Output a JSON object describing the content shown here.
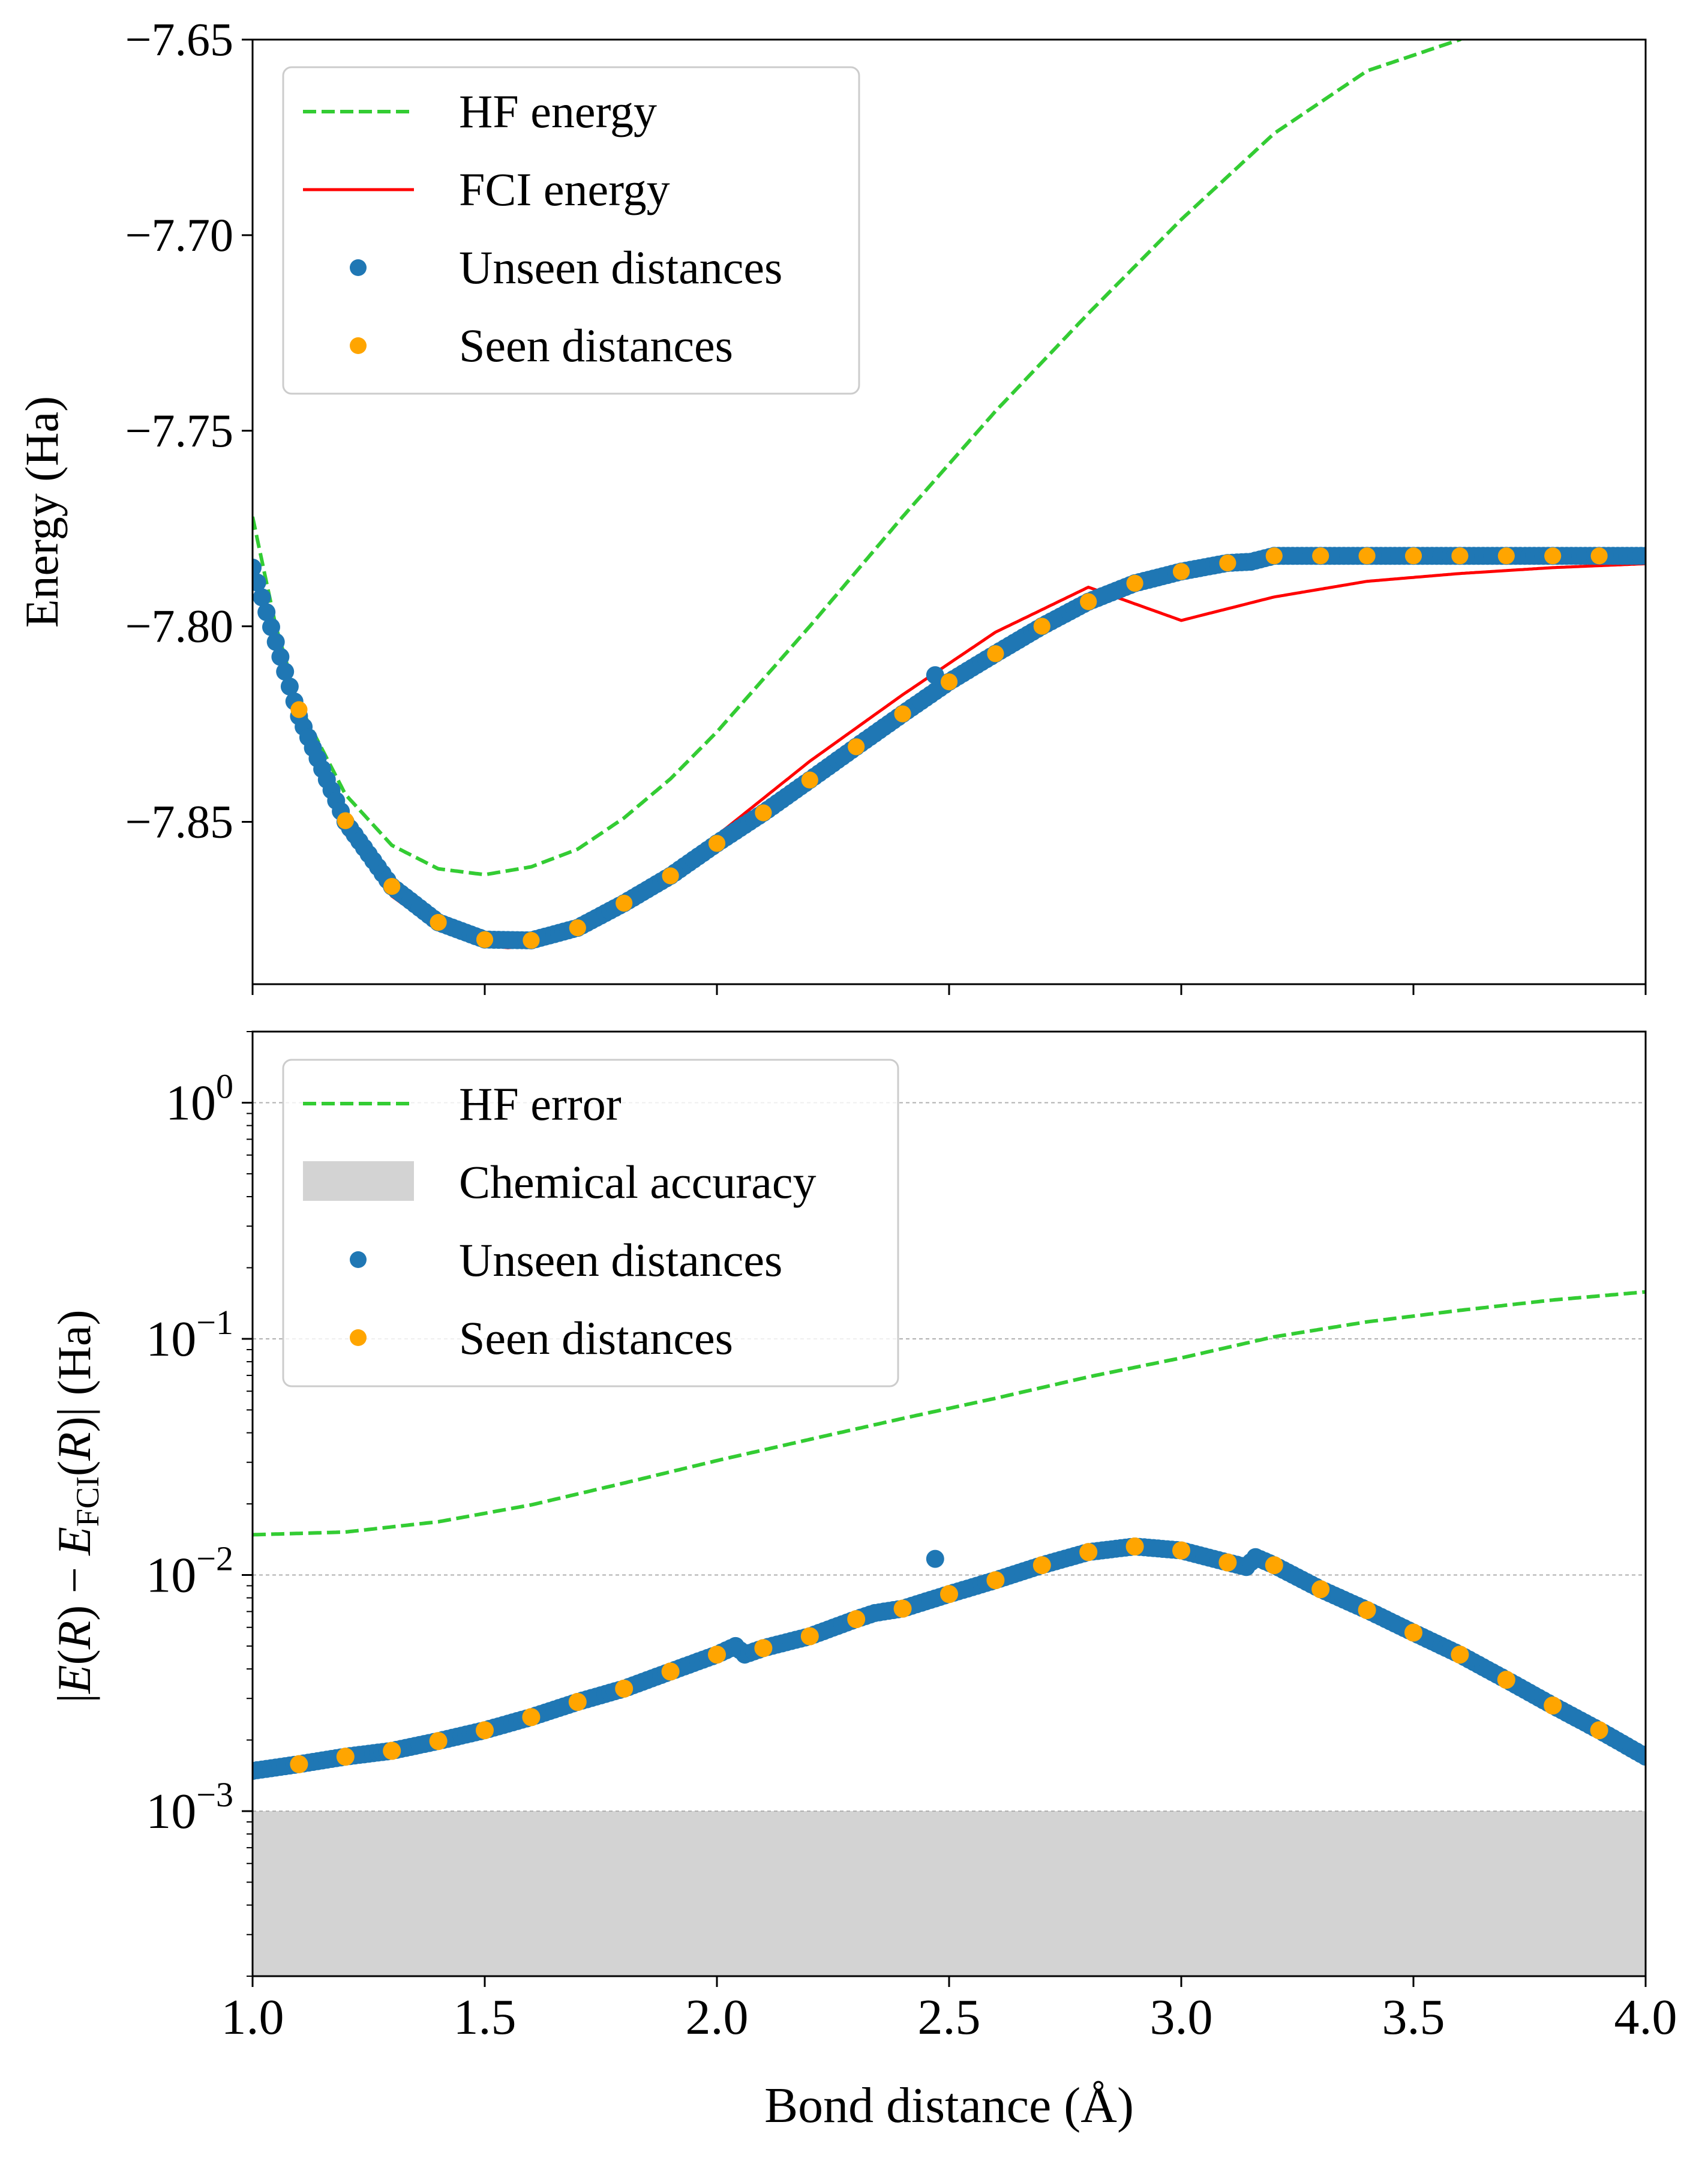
{
  "chart_data": [
    {
      "type": "line",
      "title": "",
      "xlabel": "",
      "ylabel": "Energy (Ha)",
      "xlim": [
        1.0,
        4.0
      ],
      "ylim": [
        -7.8915,
        -7.65
      ],
      "xticks": [
        1.0,
        1.5,
        2.0,
        2.5,
        3.0,
        3.5,
        4.0
      ],
      "show_xticklabels": false,
      "yticks": [
        "-7.65",
        "-7.70",
        "-7.75",
        "-7.80",
        "-7.85"
      ],
      "ytick_values": [
        -7.65,
        -7.7,
        -7.75,
        -7.8,
        -7.85
      ],
      "grid": false,
      "legend_position": "top-left",
      "legend": [
        {
          "label": "HF energy",
          "kind": "dashed-line",
          "color": "#33cc33"
        },
        {
          "label": "FCI energy",
          "kind": "line",
          "color": "#ff0000"
        },
        {
          "label": "Unseen distances",
          "kind": "marker",
          "color": "#1f77b4"
        },
        {
          "label": "Seen distances",
          "kind": "marker",
          "color": "#ffa500"
        }
      ],
      "series": [
        {
          "name": "HF energy",
          "style": "dashed",
          "color": "#33cc33",
          "x": [
            1.0,
            1.05,
            1.1,
            1.2,
            1.3,
            1.4,
            1.5,
            1.6,
            1.7,
            1.8,
            1.9,
            2.0,
            2.2,
            2.4,
            2.6,
            2.8,
            3.0,
            3.2,
            3.4,
            3.6,
            3.65
          ],
          "y": [
            -7.772,
            -7.8,
            -7.82,
            -7.843,
            -7.856,
            -7.862,
            -7.8635,
            -7.8615,
            -7.857,
            -7.849,
            -7.839,
            -7.827,
            -7.8,
            -7.772,
            -7.745,
            -7.72,
            -7.696,
            -7.674,
            -7.658,
            -7.65,
            -7.646
          ]
        },
        {
          "name": "FCI energy",
          "style": "solid",
          "color": "#ff0000",
          "x": [
            1.0,
            1.05,
            1.1,
            1.2,
            1.3,
            1.4,
            1.5,
            1.55,
            1.6,
            1.7,
            1.8,
            1.9,
            2.0,
            2.2,
            2.4,
            2.6,
            2.8,
            3.0,
            3.2,
            3.4,
            3.6,
            3.8,
            4.0
          ],
          "y": [
            -7.7865,
            -7.804,
            -7.823,
            -7.853,
            -7.869,
            -7.8775,
            -7.8815,
            -7.8822,
            -7.8815,
            -7.878,
            -7.8715,
            -7.863,
            -7.8535,
            -7.8345,
            -7.8175,
            -7.8015,
            -7.79,
            -7.7985,
            -7.7925,
            -7.7885,
            -7.7865,
            -7.785,
            -7.784
          ]
        },
        {
          "name": "Unseen distances",
          "style": "markers",
          "color": "#1f77b4",
          "dense": true,
          "step": 0.01,
          "x": [
            1.0,
            1.05,
            1.1,
            1.2,
            1.3,
            1.4,
            1.5,
            1.6,
            1.7,
            1.8,
            1.9,
            2.0,
            2.1,
            2.2,
            2.3,
            2.4,
            2.5,
            2.6,
            2.7,
            2.8,
            2.9,
            3.0,
            3.1,
            3.15,
            3.2,
            3.4,
            3.6,
            3.8,
            4.0
          ],
          "y": [
            -7.785,
            -7.804,
            -7.823,
            -7.85,
            -7.8665,
            -7.8757,
            -7.8801,
            -7.8803,
            -7.8771,
            -7.8708,
            -7.8638,
            -7.8555,
            -7.8477,
            -7.8393,
            -7.8308,
            -7.8224,
            -7.8142,
            -7.807,
            -7.8,
            -7.7937,
            -7.789,
            -7.786,
            -7.7838,
            -7.7835,
            -7.782,
            -7.782,
            -7.782,
            -7.782,
            -7.782
          ]
        },
        {
          "name": "Seen distances",
          "style": "markers",
          "color": "#ffa500",
          "x": [
            1.1,
            1.2,
            1.3,
            1.4,
            1.5,
            1.6,
            1.7,
            1.8,
            1.9,
            2.0,
            2.1,
            2.2,
            2.3,
            2.4,
            2.5,
            2.6,
            2.7,
            2.8,
            2.9,
            3.0,
            3.1,
            3.2,
            3.3,
            3.4,
            3.5,
            3.6,
            3.7,
            3.8,
            3.9
          ],
          "y": [
            -7.8213,
            -7.8497,
            -7.8665,
            -7.8757,
            -7.8801,
            -7.8803,
            -7.8771,
            -7.8708,
            -7.8638,
            -7.8555,
            -7.8477,
            -7.8393,
            -7.8308,
            -7.8224,
            -7.8142,
            -7.807,
            -7.8,
            -7.7937,
            -7.789,
            -7.786,
            -7.7838,
            -7.782,
            -7.782,
            -7.782,
            -7.782,
            -7.782,
            -7.782,
            -7.782,
            -7.782
          ]
        }
      ]
    },
    {
      "type": "line",
      "title": "",
      "xlabel": "Bond distance (Å)",
      "ylabel": "|E(R) − E_FCI(R)| (Ha)",
      "ylabel_parts": {
        "open": "|",
        "e": "E",
        "open_paren": "(",
        "r": "R",
        "close_minus": ") − ",
        "efci": "E",
        "sub": "FCI",
        "open_paren2": "(",
        "r2": "R",
        "close": ")| (Ha)"
      },
      "xlim": [
        1.0,
        4.0
      ],
      "ylim": [
        0.0002,
        2.0
      ],
      "yscale": "log",
      "xticks": [
        1.0,
        1.5,
        2.0,
        2.5,
        3.0,
        3.5,
        4.0
      ],
      "xticklabels": [
        "1.0",
        "1.5",
        "2.0",
        "2.5",
        "3.0",
        "3.5",
        "4.0"
      ],
      "ytick_values": [
        1,
        0.1,
        0.01,
        0.001
      ],
      "yticks": [
        {
          "base": "10",
          "exp": "0"
        },
        {
          "base": "10",
          "exp": "−1"
        },
        {
          "base": "10",
          "exp": "−2"
        },
        {
          "base": "10",
          "exp": "−3"
        }
      ],
      "grid": "horizontal dashed at decades",
      "legend_position": "top-left",
      "legend": [
        {
          "label": "HF error",
          "kind": "dashed-line",
          "color": "#33cc33"
        },
        {
          "label": "Chemical accuracy",
          "kind": "patch",
          "color": "#d3d3d3"
        },
        {
          "label": "Unseen distances",
          "kind": "marker",
          "color": "#1f77b4"
        },
        {
          "label": "Seen distances",
          "kind": "marker",
          "color": "#ffa500"
        }
      ],
      "shaded_region": {
        "name": "Chemical accuracy",
        "y_from": 0.0002,
        "y_to": 0.001,
        "color": "#d3d3d3"
      },
      "series": [
        {
          "name": "HF error",
          "style": "dashed",
          "color": "#33cc33",
          "x": [
            1.0,
            1.2,
            1.4,
            1.6,
            1.8,
            2.0,
            2.2,
            2.4,
            2.6,
            2.8,
            3.0,
            3.2,
            3.4,
            3.6,
            3.8,
            4.0
          ],
          "y": [
            0.0148,
            0.0152,
            0.0168,
            0.0198,
            0.0245,
            0.0305,
            0.0375,
            0.046,
            0.056,
            0.069,
            0.083,
            0.102,
            0.118,
            0.132,
            0.146,
            0.158
          ]
        },
        {
          "name": "Unseen distances",
          "style": "markers",
          "color": "#1f77b4",
          "dense": true,
          "step": 0.01,
          "x": [
            1.0,
            1.1,
            1.2,
            1.3,
            1.4,
            1.5,
            1.6,
            1.7,
            1.8,
            1.9,
            2.0,
            2.04,
            2.06,
            2.1,
            2.2,
            2.3,
            2.34,
            2.4,
            2.5,
            2.6,
            2.7,
            2.8,
            2.9,
            3.0,
            3.1,
            3.14,
            3.16,
            3.2,
            3.3,
            3.4,
            3.5,
            3.6,
            3.7,
            3.8,
            3.9,
            4.0
          ],
          "y": [
            0.00148,
            0.00158,
            0.0017,
            0.0018,
            0.00198,
            0.0022,
            0.0025,
            0.0029,
            0.0033,
            0.0039,
            0.0046,
            0.005,
            0.0046,
            0.0049,
            0.0055,
            0.0065,
            0.0069,
            0.0072,
            0.0083,
            0.0095,
            0.011,
            0.0125,
            0.0132,
            0.0127,
            0.0113,
            0.0108,
            0.0119,
            0.011,
            0.0087,
            0.0071,
            0.0057,
            0.0046,
            0.0036,
            0.0028,
            0.0022,
            0.0017
          ]
        },
        {
          "name": "Seen distances",
          "style": "markers",
          "color": "#ffa500",
          "x": [
            1.1,
            1.2,
            1.3,
            1.4,
            1.5,
            1.6,
            1.7,
            1.8,
            1.9,
            2.0,
            2.1,
            2.2,
            2.3,
            2.4,
            2.5,
            2.6,
            2.7,
            2.8,
            2.9,
            3.0,
            3.1,
            3.2,
            3.3,
            3.4,
            3.5,
            3.6,
            3.7,
            3.8,
            3.9
          ],
          "y": [
            0.00158,
            0.0017,
            0.0018,
            0.00198,
            0.0022,
            0.0025,
            0.0029,
            0.0033,
            0.0039,
            0.0046,
            0.0049,
            0.0055,
            0.0065,
            0.0072,
            0.0083,
            0.0095,
            0.011,
            0.0125,
            0.0132,
            0.0127,
            0.0113,
            0.011,
            0.0087,
            0.0071,
            0.0057,
            0.0046,
            0.0036,
            0.0028,
            0.0022
          ]
        },
        {
          "name": "Unseen outlier",
          "style": "markers",
          "color": "#1f77b4",
          "legend": false,
          "x": [
            2.47
          ],
          "y": [
            0.0117
          ]
        }
      ]
    }
  ],
  "extra_points": {
    "top_outlier": {
      "x": 2.47,
      "y": -7.8125
    }
  }
}
